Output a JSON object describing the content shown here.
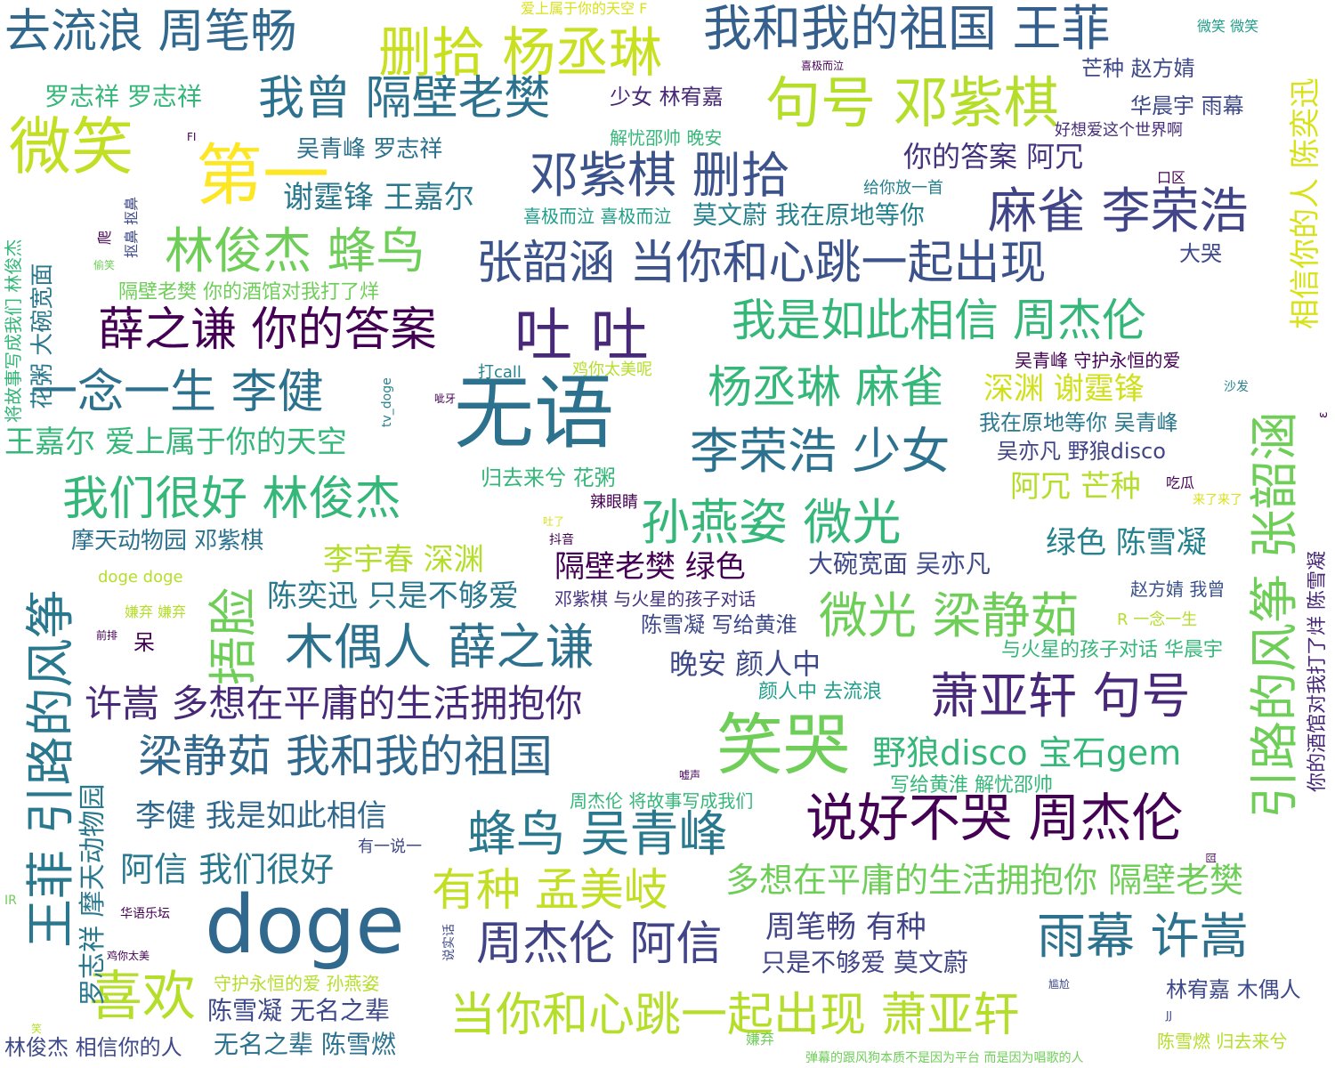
{
  "words": [
    "去流浪 周笔畅",
    "删拾 杨丞琳",
    "我和我的祖国 王菲",
    "爱上属于你的天空 F",
    "微笑 微笑",
    "芒种 赵方婧",
    "喜极而泣",
    "罗志祥 罗志祥",
    "我曾 隔壁老樊",
    "句号 邓紫棋",
    "少女 林宥嘉",
    "华晨宇 雨幕",
    "微笑",
    "解忧邵帅 晚安",
    "好想爱这个世界啊",
    "FI",
    "吴青峰 罗志祥",
    "第一",
    "你的答案 阿冗",
    "邓紫棋 删拾",
    "口区",
    "给你放一首",
    "谢霆锋 王嘉尔",
    "麻雀 李荣浩",
    "喜极而泣 喜极而泣",
    "莫文蔚 我在原地等你",
    "林俊杰 蜂鸟",
    "张韶涵 当你和心跳一起出现",
    "大哭",
    "偷笑",
    "隔壁老樊 你的酒馆对我打了烊",
    "薛之谦 你的答案",
    "吐 吐",
    "我是如此相信 周杰伦",
    "打call",
    "鸡你太美呢",
    "吴青峰 守护永恒的爱",
    "沙发",
    "一念一生 李健",
    "无语",
    "杨丞琳 麻雀",
    "深渊 谢霆锋",
    "呲牙",
    "我在原地等你 吴青峰",
    "王嘉尔 爱上属于你的天空",
    "李荣浩 少女",
    "吴亦凡 野狼disco",
    "归去来兮 花粥",
    "阿冗 芒种",
    "吃瓜",
    "我们很好 林俊杰",
    "辣眼睛",
    "来了来了",
    "孙燕姿 微光",
    "吐了",
    "抖音",
    "摩天动物园 邓紫棋",
    "绿色 陈雪凝",
    "李宇春 深渊",
    "隔壁老樊 绿色",
    "大碗宽面 吴亦凡",
    "doge doge",
    "陈奕迅 只是不够爱",
    "邓紫棋 与火星的孩子对话",
    "赵方婧 我曾",
    "微光 梁静茹",
    "嫌弃 嫌弃",
    "R 一念一生",
    "陈雪凝 写给黄淮",
    "前排",
    "呆",
    "木偶人 薛之谦",
    "晚安 颜人中",
    "与火星的孩子对话 华晨宇",
    "许嵩 多想在平庸的生活拥抱你",
    "颜人中 去流浪",
    "萧亚轩 句号",
    "笑哭",
    "梁静茹 我和我的祖国",
    "野狼disco 宝石gem",
    "嘘声",
    "写给黄淮 解忧邵帅",
    "周杰伦 将故事写成我们",
    "李健 我是如此相信",
    "说好不哭 周杰伦",
    "蜂鸟 吴青峰",
    "有一说一",
    "阿信 我们很好",
    "有种 孟美岐",
    "多想在平庸的生活拥抱你 隔壁老樊",
    "IR",
    "doge",
    "华语乐坛",
    "周笔畅 有种",
    "雨幕 许嵩",
    "周杰伦 阿信",
    "只是不够爱 莫文蔚",
    "鸡你太美",
    "喜欢",
    "守护永恒的爱 孙燕姿",
    "尴尬",
    "林宥嘉 木偶人",
    "陈雪凝 无名之辈",
    "当你和心跳一起出现 萧亚轩",
    "笑",
    "JJ",
    "林俊杰 相信你的人",
    "无名之辈 陈雪燃",
    "嫌弃",
    "陈雪燃 归去来兮",
    "弹幕的跟风狗本质不是因为平台 而是因为唱歌的人",
    "王菲 引路的风筝",
    "将故事写成我们 林俊杰",
    "花粥 大碗宽面",
    "爬",
    "抠鼻 抠鼻",
    "罗志祥 摩天动物园",
    "捂脸",
    "相信你的人 陈奕迅",
    "引路的风筝 张韶涵",
    "你的酒馆对我打了烊 陈雪凝",
    "tv_doge",
    "说实话",
    "囧",
    "ε"
  ]
}
